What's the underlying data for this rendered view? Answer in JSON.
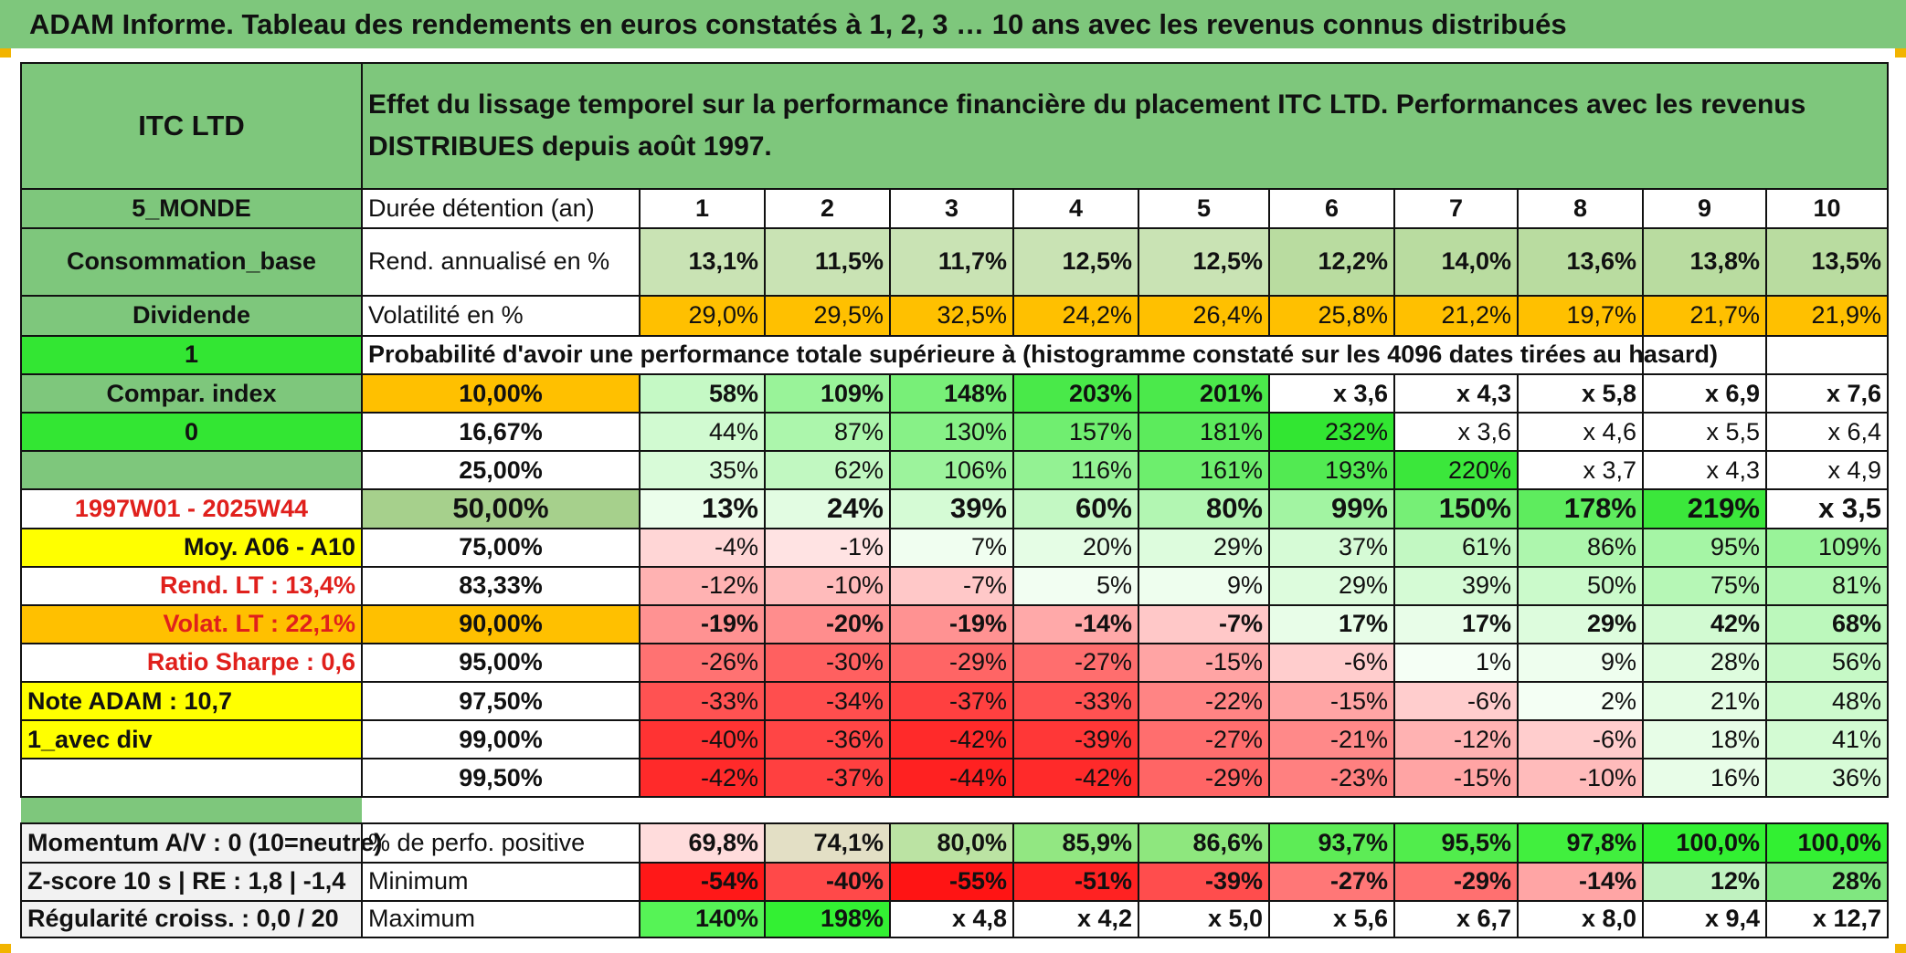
{
  "title": "ADAM Informe. Tableau des rendements en euros constatés à 1, 2, 3 … 10 ans avec les revenus connus distribués",
  "colors": {
    "green_header": "#7ec77c",
    "bright_green": "#33e633",
    "orange": "#ffc000",
    "yellow": "#ffff00",
    "red_text": "#e0201c"
  },
  "header": {
    "name": "ITC LTD",
    "description": "Effet du lissage temporel sur la performance financière du placement ITC LTD. Performances avec les revenus DISTRIBUES depuis août 1997."
  },
  "side": {
    "zone": "5_MONDE",
    "category": "Consommation_base",
    "income": "Dividende",
    "flag1": "1",
    "compar": "Compar. index",
    "flag0": "0",
    "period": "1997W01 - 2025W44",
    "moy": "Moy. A06 - A10",
    "rend_lt": "Rend. LT :    13,4%",
    "volat_lt": "Volat. LT :    22,1%",
    "sharpe": "Ratio Sharpe :    0,6",
    "note": "Note ADAM : 10,7",
    "div": "1_avec div",
    "momentum": "Momentum A/V : 0 (10=neutre)",
    "zscore": "Z-score 10 s | RE : 1,8 | -1,4",
    "regularite": "Régularité croiss. : 0,0 / 20"
  },
  "labels": {
    "duration": "Durée détention (an)",
    "rend": "Rend. annualisé en %",
    "vol": "Volatilité en %",
    "prob": "Probabilité d'avoir une performance totale supérieure à (histogramme constaté sur les 4096 dates tirées au hasard)",
    "pos": "% de perfo. positive",
    "min": "Minimum",
    "max": "Maximum"
  },
  "years": [
    "1",
    "2",
    "3",
    "4",
    "5",
    "6",
    "7",
    "8",
    "9",
    "10"
  ],
  "rend": [
    "13,1%",
    "11,5%",
    "11,7%",
    "12,5%",
    "12,5%",
    "12,2%",
    "14,0%",
    "13,6%",
    "13,8%",
    "13,5%"
  ],
  "vol": [
    "29,0%",
    "29,5%",
    "32,5%",
    "24,2%",
    "26,4%",
    "25,8%",
    "21,2%",
    "19,7%",
    "21,7%",
    "21,9%"
  ],
  "prob_rows": [
    {
      "pct": "10,00%",
      "values": [
        "58%",
        "109%",
        "148%",
        "203%",
        "201%",
        "x 3,6",
        "x 4,3",
        "x 5,8",
        "x 6,9",
        "x 7,6"
      ]
    },
    {
      "pct": "16,67%",
      "values": [
        "44%",
        "87%",
        "130%",
        "157%",
        "181%",
        "232%",
        "x 3,6",
        "x 4,6",
        "x 5,5",
        "x 6,4"
      ]
    },
    {
      "pct": "25,00%",
      "values": [
        "35%",
        "62%",
        "106%",
        "116%",
        "161%",
        "193%",
        "220%",
        "x 3,7",
        "x 4,3",
        "x 4,9"
      ]
    },
    {
      "pct": "50,00%",
      "values": [
        "13%",
        "24%",
        "39%",
        "60%",
        "80%",
        "99%",
        "150%",
        "178%",
        "219%",
        "x 3,5"
      ]
    },
    {
      "pct": "75,00%",
      "values": [
        "-4%",
        "-1%",
        "7%",
        "20%",
        "29%",
        "37%",
        "61%",
        "86%",
        "95%",
        "109%"
      ]
    },
    {
      "pct": "83,33%",
      "values": [
        "-12%",
        "-10%",
        "-7%",
        "5%",
        "9%",
        "29%",
        "39%",
        "50%",
        "75%",
        "81%"
      ]
    },
    {
      "pct": "90,00%",
      "values": [
        "-19%",
        "-20%",
        "-19%",
        "-14%",
        "-7%",
        "17%",
        "17%",
        "29%",
        "42%",
        "68%"
      ]
    },
    {
      "pct": "95,00%",
      "values": [
        "-26%",
        "-30%",
        "-29%",
        "-27%",
        "-15%",
        "-6%",
        "1%",
        "9%",
        "28%",
        "56%"
      ]
    },
    {
      "pct": "97,50%",
      "values": [
        "-33%",
        "-34%",
        "-37%",
        "-33%",
        "-22%",
        "-15%",
        "-6%",
        "2%",
        "21%",
        "48%"
      ]
    },
    {
      "pct": "99,00%",
      "values": [
        "-40%",
        "-36%",
        "-42%",
        "-39%",
        "-27%",
        "-21%",
        "-12%",
        "-6%",
        "18%",
        "41%"
      ]
    },
    {
      "pct": "99,50%",
      "values": [
        "-42%",
        "-37%",
        "-44%",
        "-42%",
        "-29%",
        "-23%",
        "-15%",
        "-10%",
        "16%",
        "36%"
      ]
    }
  ],
  "pos": [
    "69,8%",
    "74,1%",
    "80,0%",
    "85,9%",
    "86,6%",
    "93,7%",
    "95,5%",
    "97,8%",
    "100,0%",
    "100,0%"
  ],
  "min": [
    "-54%",
    "-40%",
    "-55%",
    "-51%",
    "-39%",
    "-27%",
    "-29%",
    "-14%",
    "12%",
    "28%"
  ],
  "max": [
    "140%",
    "198%",
    "x 4,8",
    "x 4,2",
    "x 5,0",
    "x 5,6",
    "x 6,7",
    "x 8,0",
    "x 9,4",
    "x 12,7"
  ]
}
